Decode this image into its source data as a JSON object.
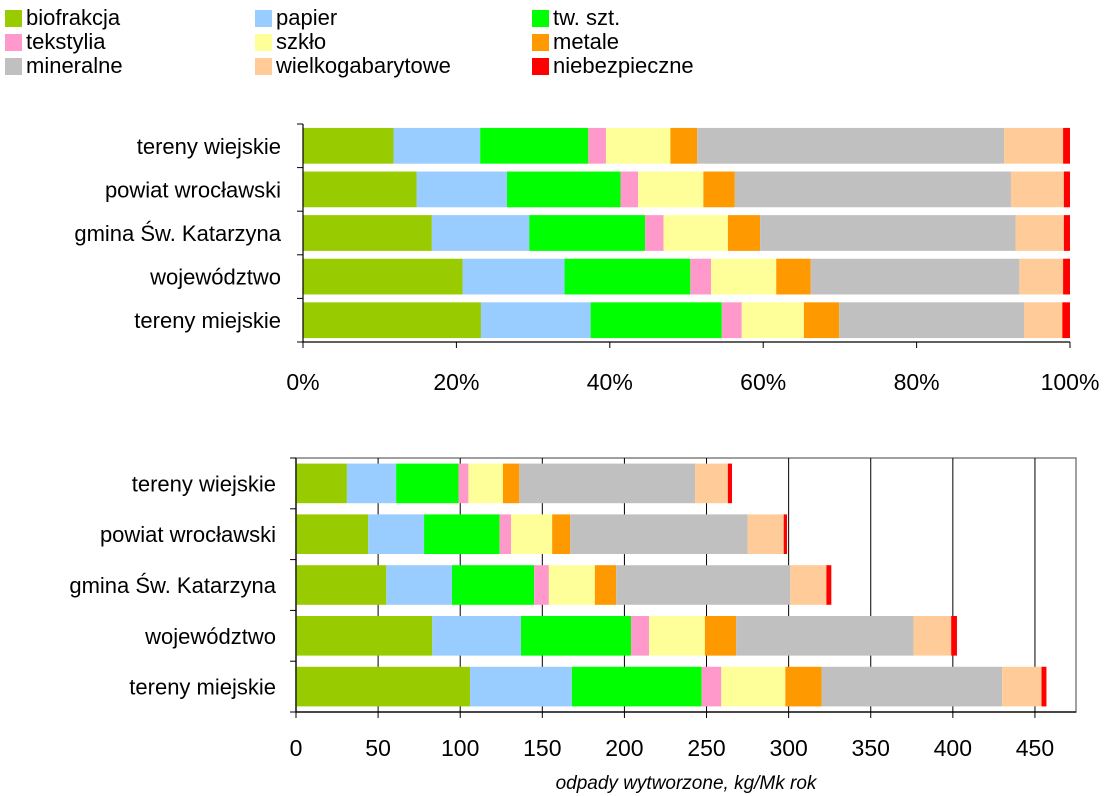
{
  "legend": [
    {
      "name": "biofrakcja",
      "color": "#99cc00"
    },
    {
      "name": "papier",
      "color": "#99ccff"
    },
    {
      "name": "tw. szt.",
      "color": "#00ff00"
    },
    {
      "name": "tekstylia",
      "color": "#ff99cc"
    },
    {
      "name": "szkło",
      "color": "#ffff99"
    },
    {
      "name": "metale",
      "color": "#ff9900"
    },
    {
      "name": "mineralne",
      "color": "#c0c0c0"
    },
    {
      "name": "wielkogabarytowe",
      "color": "#ffcc99"
    },
    {
      "name": "niebezpieczne",
      "color": "#ff0000"
    }
  ],
  "chart_data": [
    {
      "type": "bar",
      "orientation": "horizontal",
      "stacked": "percent",
      "categories": [
        "tereny wiejskie",
        "powiat wrocławski",
        "gmina Św. Katarzyna",
        "województwo",
        "tereny miejskie"
      ],
      "series": [
        {
          "name": "biofrakcja",
          "values": [
            11.8,
            14.8,
            16.8,
            20.8,
            23.2
          ]
        },
        {
          "name": "papier",
          "values": [
            11.3,
            11.8,
            12.7,
            13.3,
            14.3
          ]
        },
        {
          "name": "tw. szt.",
          "values": [
            14.1,
            14.8,
            15.1,
            16.4,
            17.1
          ]
        },
        {
          "name": "tekstylia",
          "values": [
            2.3,
            2.3,
            2.4,
            2.7,
            2.6
          ]
        },
        {
          "name": "szkło",
          "values": [
            8.4,
            8.5,
            8.4,
            8.5,
            8.1
          ]
        },
        {
          "name": "metale",
          "values": [
            3.5,
            4.1,
            4.2,
            4.5,
            4.6
          ]
        },
        {
          "name": "mineralne",
          "values": [
            40.0,
            36.0,
            33.3,
            27.2,
            24.1
          ]
        },
        {
          "name": "wielkogabarytowe",
          "values": [
            7.7,
            6.9,
            6.3,
            5.7,
            5.0
          ]
        },
        {
          "name": "niebezpieczne",
          "values": [
            0.9,
            0.8,
            0.8,
            0.9,
            1.0
          ]
        }
      ],
      "x_ticks": [
        "0%",
        "20%",
        "40%",
        "60%",
        "80%",
        "100%"
      ],
      "xlim": [
        0,
        100
      ],
      "grid": false
    },
    {
      "type": "bar",
      "orientation": "horizontal",
      "stacked": "absolute",
      "categories": [
        "tereny wiejskie",
        "powiat wrocławski",
        "gmina Św. Katarzyna",
        "województwo",
        "tereny miejskie"
      ],
      "series": [
        {
          "name": "biofrakcja",
          "values": [
            31,
            44,
            55,
            83,
            106
          ]
        },
        {
          "name": "papier",
          "values": [
            30,
            34,
            40,
            54,
            62
          ]
        },
        {
          "name": "tw. szt.",
          "values": [
            38,
            46,
            50,
            67,
            79
          ]
        },
        {
          "name": "tekstylia",
          "values": [
            6,
            7,
            9,
            11,
            12
          ]
        },
        {
          "name": "szkło",
          "values": [
            21,
            25,
            28,
            34,
            39
          ]
        },
        {
          "name": "metale",
          "values": [
            10,
            11,
            13,
            19,
            22
          ]
        },
        {
          "name": "mineralne",
          "values": [
            107,
            108,
            106,
            108,
            110
          ]
        },
        {
          "name": "wielkogabarytowe",
          "values": [
            20,
            22,
            22,
            23,
            24
          ]
        },
        {
          "name": "niebezpieczne",
          "values": [
            2.5,
            2,
            3,
            3.5,
            3
          ]
        }
      ],
      "x_ticks": [
        "0",
        "50",
        "100",
        "150",
        "200",
        "250",
        "300",
        "350",
        "400",
        "450"
      ],
      "xlim": [
        0,
        475
      ],
      "grid": true,
      "xlabel": "odpady wytworzone, kg/Mk rok"
    }
  ]
}
